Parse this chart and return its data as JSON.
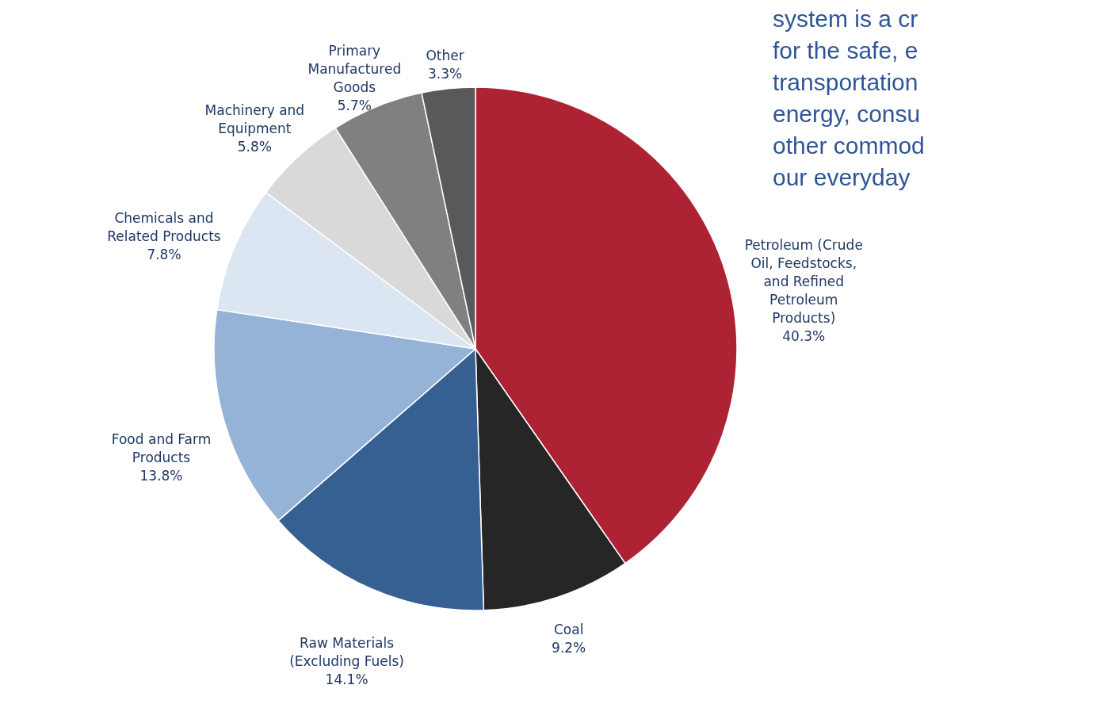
{
  "chart_data": {
    "type": "pie",
    "categories": [
      "Petroleum (Crude Oil, Feedstocks, and Refined Petroleum Products)",
      "Coal",
      "Raw Materials (Excluding Fuels)",
      "Food and Farm Products",
      "Chemicals and Related Products",
      "Machinery and Equipment",
      "Primary Manufactured Goods",
      "Other"
    ],
    "values": [
      40.3,
      9.2,
      14.1,
      13.8,
      7.8,
      5.8,
      5.7,
      3.3
    ],
    "value_labels": [
      "40.3%",
      "9.2%",
      "14.1%",
      "13.8%",
      "7.8%",
      "5.8%",
      "5.7%",
      "3.3%"
    ],
    "colors": [
      "#ad2334",
      "#262626",
      "#366092",
      "#95b3d7",
      "#dce6f2",
      "#d9d9d9",
      "#808080",
      "#595959"
    ],
    "annotations": [
      "system is a cr",
      "for the safe, e",
      "transportation",
      "energy, consu",
      "other commod",
      "our everyday"
    ],
    "legend": false
  }
}
